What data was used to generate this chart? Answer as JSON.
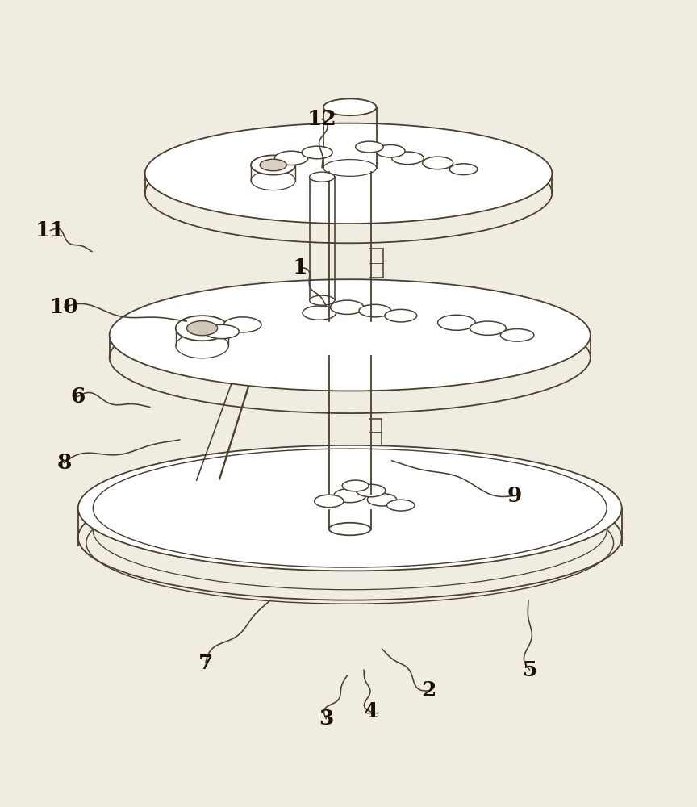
{
  "bg_color": "#f0ece2",
  "line_color": "#4a4030",
  "line_width": 1.3,
  "label_fontsize": 19,
  "label_color": "#1a1008",
  "leaders": {
    "1": {
      "lpos": [
        0.43,
        0.695
      ],
      "tpos": [
        0.468,
        0.64
      ]
    },
    "2": {
      "lpos": [
        0.615,
        0.088
      ],
      "tpos": [
        0.548,
        0.148
      ]
    },
    "3": {
      "lpos": [
        0.468,
        0.048
      ],
      "tpos": [
        0.498,
        0.11
      ]
    },
    "4": {
      "lpos": [
        0.532,
        0.058
      ],
      "tpos": [
        0.522,
        0.118
      ]
    },
    "5": {
      "lpos": [
        0.76,
        0.118
      ],
      "tpos": [
        0.758,
        0.218
      ]
    },
    "6": {
      "lpos": [
        0.112,
        0.51
      ],
      "tpos": [
        0.215,
        0.495
      ]
    },
    "7": {
      "lpos": [
        0.295,
        0.128
      ],
      "tpos": [
        0.388,
        0.218
      ]
    },
    "8": {
      "lpos": [
        0.092,
        0.415
      ],
      "tpos": [
        0.258,
        0.448
      ]
    },
    "9": {
      "lpos": [
        0.738,
        0.368
      ],
      "tpos": [
        0.562,
        0.418
      ]
    },
    "10": {
      "lpos": [
        0.092,
        0.638
      ],
      "tpos": [
        0.268,
        0.618
      ]
    },
    "11": {
      "lpos": [
        0.072,
        0.748
      ],
      "tpos": [
        0.132,
        0.718
      ]
    },
    "12": {
      "lpos": [
        0.462,
        0.908
      ],
      "tpos": [
        0.462,
        0.838
      ]
    }
  }
}
